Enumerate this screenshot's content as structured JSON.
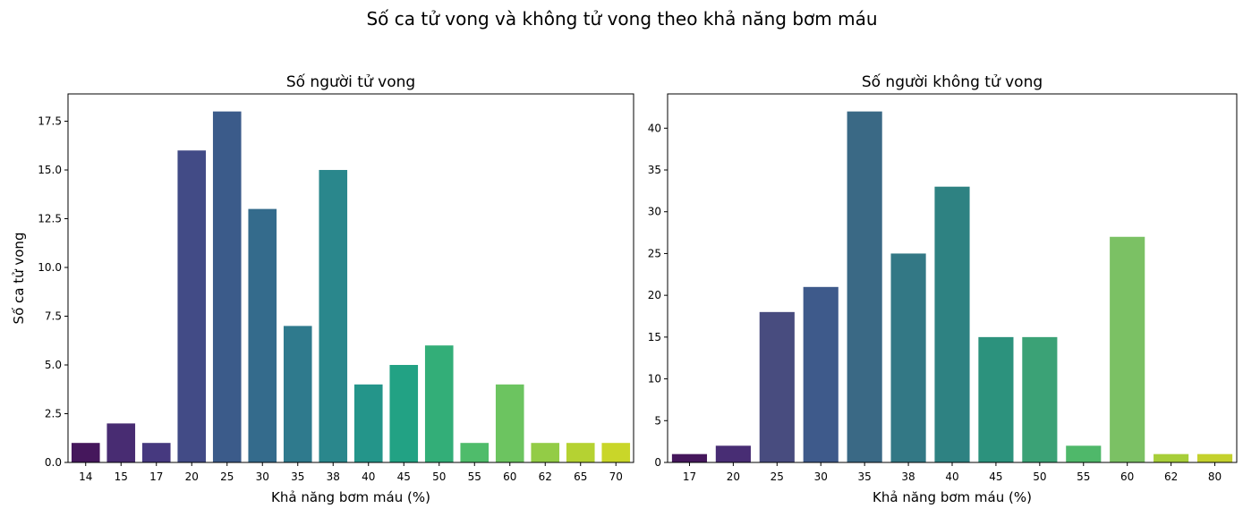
{
  "figure": {
    "suptitle": "Số ca tử vong và không tử vong theo khả năng bơm máu"
  },
  "chart_data": [
    {
      "type": "bar",
      "title": "Số người tử vong",
      "xlabel": "Khả năng bơm máu (%)",
      "ylabel": "Số ca tử vong",
      "categories": [
        "14",
        "15",
        "17",
        "20",
        "25",
        "30",
        "35",
        "38",
        "40",
        "45",
        "50",
        "55",
        "60",
        "62",
        "65",
        "70"
      ],
      "values": [
        1,
        2,
        1,
        16,
        18,
        13,
        7,
        15,
        4,
        5,
        6,
        1,
        4,
        1,
        1,
        1
      ],
      "ylim": [
        0,
        18.9
      ],
      "yticks": [
        0.0,
        2.5,
        5.0,
        7.5,
        10.0,
        12.5,
        15.0,
        17.5
      ],
      "ytick_labels": [
        "0.0",
        "2.5",
        "5.0",
        "7.5",
        "10.0",
        "12.5",
        "15.0",
        "17.5"
      ],
      "colors": [
        "#45175c",
        "#482c72",
        "#46397f",
        "#424b86",
        "#3b5b8a",
        "#346b8c",
        "#2f7a8d",
        "#2a878c",
        "#24958a",
        "#22a284",
        "#33ae78",
        "#4fbc6b",
        "#6cc460",
        "#93cc46",
        "#b5d232",
        "#c9d629"
      ],
      "grid": false,
      "legend": "none"
    },
    {
      "type": "bar",
      "title": "Số người không tử vong",
      "xlabel": "Khả năng bơm máu (%)",
      "ylabel": "",
      "categories": [
        "17",
        "20",
        "25",
        "30",
        "35",
        "38",
        "40",
        "45",
        "50",
        "55",
        "60",
        "62",
        "80"
      ],
      "values": [
        1,
        2,
        18,
        21,
        42,
        25,
        33,
        15,
        15,
        2,
        27,
        1,
        1
      ],
      "ylim": [
        0,
        44.1
      ],
      "yticks": [
        0,
        5,
        10,
        15,
        20,
        25,
        30,
        35,
        40
      ],
      "ytick_labels": [
        "0",
        "5",
        "10",
        "15",
        "20",
        "25",
        "30",
        "35",
        "40"
      ],
      "colors": [
        "#45175c",
        "#482d74",
        "#484c7f",
        "#3e5a8b",
        "#3a6985",
        "#337885",
        "#2e8282",
        "#2c927d",
        "#3ba276",
        "#4fb86a",
        "#7bc164",
        "#a7ce39",
        "#c4d12d"
      ],
      "grid": false,
      "legend": "none"
    }
  ]
}
